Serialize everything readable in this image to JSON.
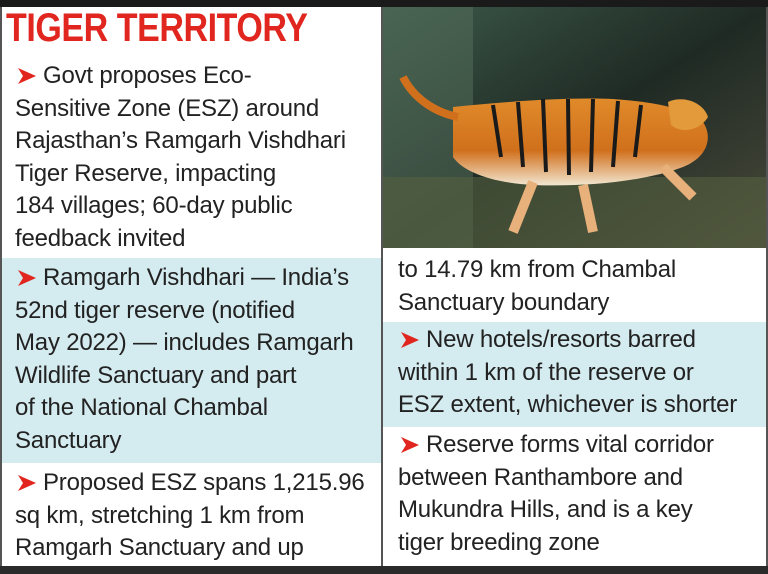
{
  "header": {
    "title": "TIGER TERRITORY"
  },
  "bullets": [
    {
      "lines": [
        "Govt proposes Eco-",
        "Sensitive Zone (ESZ) around",
        "Rajasthan’s Ramgarh Vishdhari",
        "Tiger Reserve, impacting",
        "184 villages; 60-day public",
        "feedback invited"
      ]
    },
    {
      "lines": [
        "Ramgarh Vishdhari — India’s",
        "52nd tiger reserve (notified",
        "May 2022) — includes Ramgarh",
        "Wildlife Sanctuary and part",
        "of the National Chambal",
        "Sanctuary"
      ]
    },
    {
      "lines": [
        "Proposed ESZ spans 1,215.96",
        "sq km, stretching 1 km from",
        "Ramgarh Sanctuary and up",
        "to 14.79 km from Chambal",
        "Sanctuary boundary"
      ]
    },
    {
      "lines": [
        "New hotels/resorts barred",
        "within 1 km of the reserve or",
        "ESZ extent, whichever is shorter"
      ]
    },
    {
      "lines": [
        "Reserve forms vital corridor",
        "between Ranthambore and",
        "Mukundra Hills, and is a key",
        "tiger breeding zone"
      ]
    }
  ]
}
